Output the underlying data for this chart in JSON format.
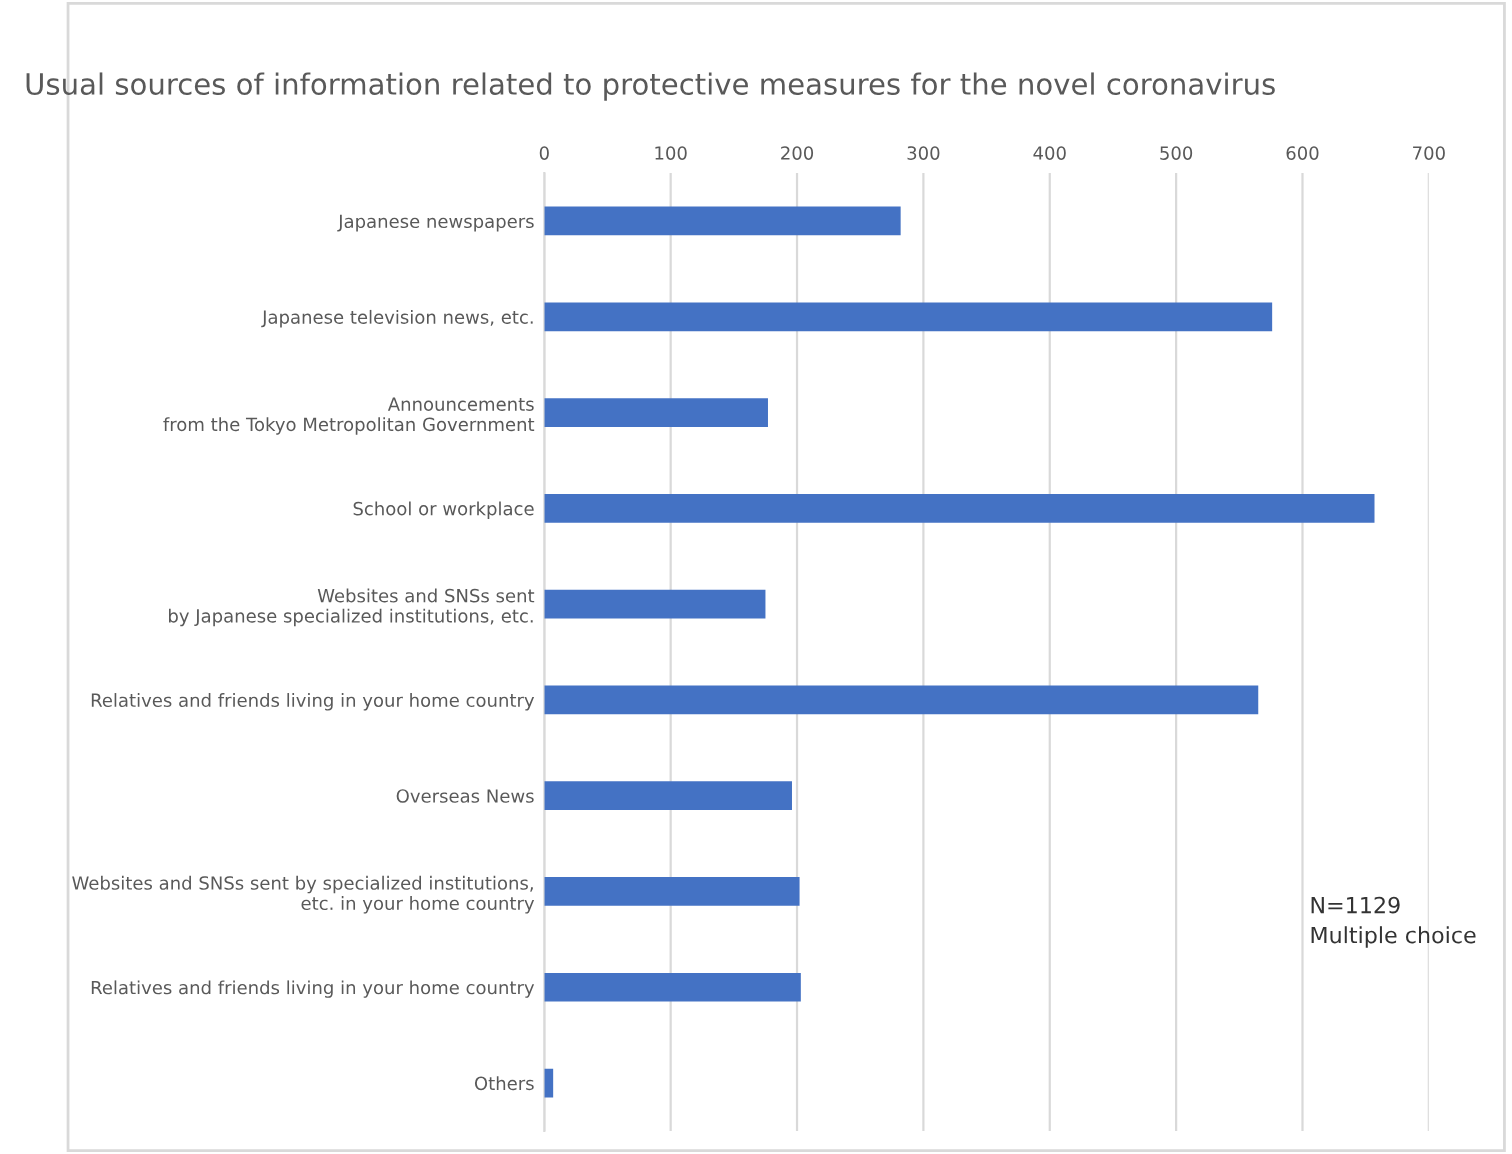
{
  "chart_data": {
    "type": "bar",
    "orientation": "horizontal",
    "title": "Usual sources of information related to protective measures for the novel coronavirus",
    "categories": [
      "Japanese newspapers",
      "Japanese television news, etc.",
      "Announcements\nfrom the Tokyo Metropolitan Government",
      "School or workplace",
      "Websites and SNSs sent\nby Japanese specialized institutions, etc.",
      "Relatives and friends living in your home country",
      "Overseas News",
      "Websites and SNSs sent by specialized institutions,\netc. in your home country",
      "Relatives and friends living in your home country",
      "Others"
    ],
    "values": [
      282,
      576,
      177,
      657,
      175,
      565,
      196,
      202,
      203,
      7
    ],
    "color": "#4472c4",
    "xlim": [
      0,
      700
    ],
    "xticks": [
      0,
      100,
      200,
      300,
      400,
      500,
      600,
      700
    ],
    "grid": "x",
    "legend": false,
    "annotations": [
      "N=1129\nMultiple choice"
    ]
  }
}
